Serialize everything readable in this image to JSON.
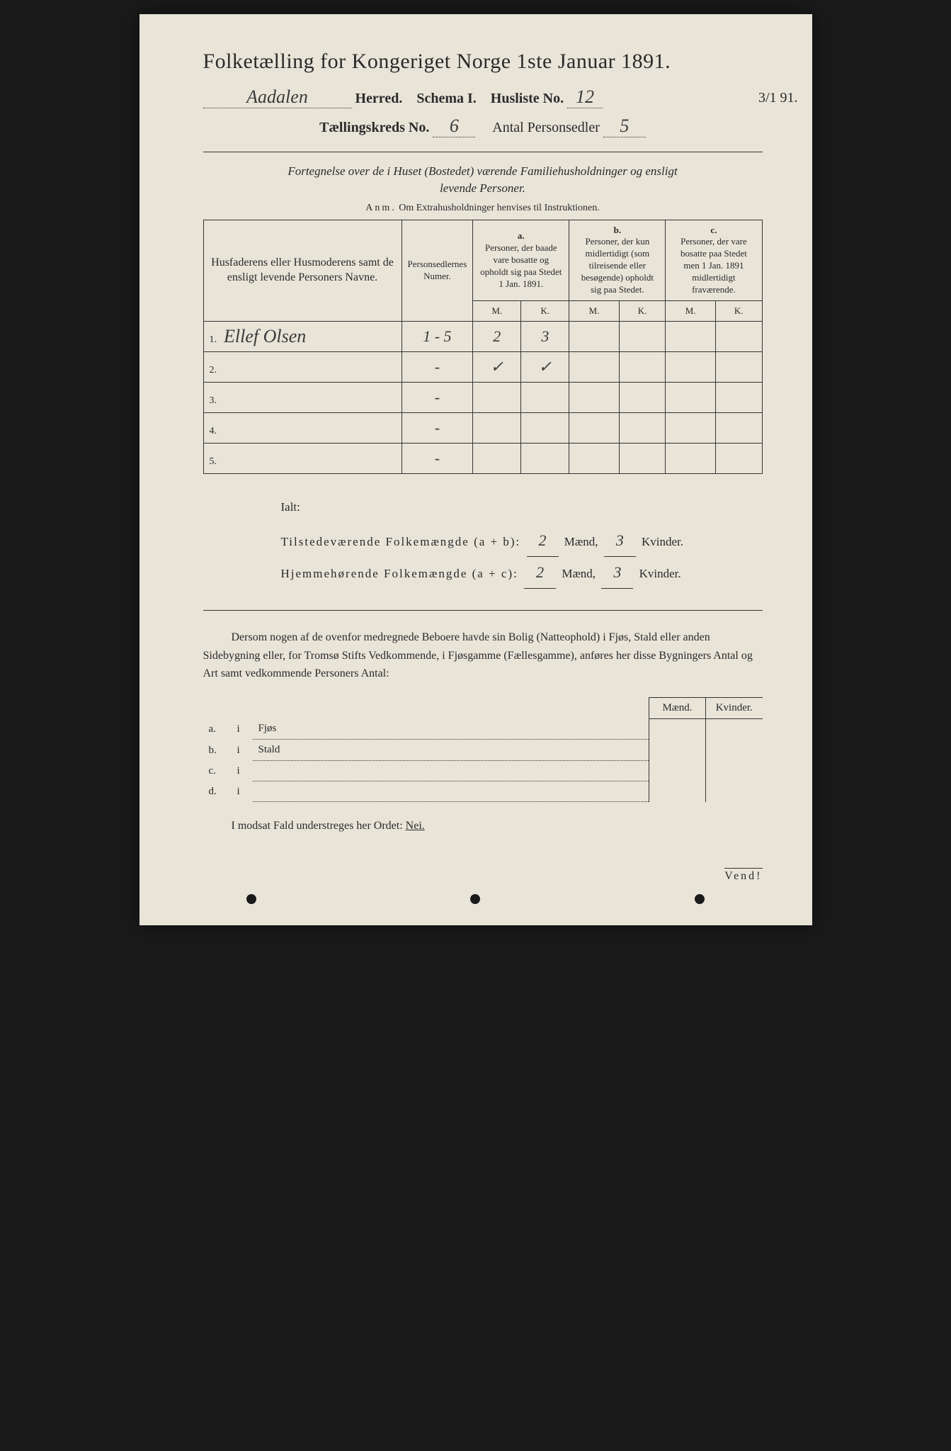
{
  "title": "Folketælling for Kongeriget Norge 1ste Januar 1891.",
  "header": {
    "herred_value": "Aadalen",
    "herred_label": "Herred.",
    "schema_label": "Schema I.",
    "husliste_label": "Husliste No.",
    "husliste_value": "12",
    "margin_date": "3/1 91.",
    "kreds_label": "Tællingskreds No.",
    "kreds_value": "6",
    "antal_label": "Antal Personsedler",
    "antal_value": "5"
  },
  "intro": {
    "line1": "Fortegnelse over de i Huset (Bostedet) værende Familiehusholdninger og ensligt",
    "line2": "levende Personer.",
    "anm_label": "Anm.",
    "anm_text": "Om Extrahusholdninger henvises til Instruktionen."
  },
  "table": {
    "headers": {
      "name": "Husfaderens eller Husmoderens samt de ensligt levende Personers Navne.",
      "num": "Personsedlernes Numer.",
      "a_label": "a.",
      "a_text": "Personer, der baade vare bosatte og opholdt sig paa Stedet 1 Jan. 1891.",
      "b_label": "b.",
      "b_text": "Personer, der kun midlertidigt (som tilreisende eller besøgende) opholdt sig paa Stedet.",
      "c_label": "c.",
      "c_text": "Personer, der vare bosatte paa Stedet men 1 Jan. 1891 midlertidigt fraværende.",
      "m": "M.",
      "k": "K."
    },
    "rows": [
      {
        "n": "1.",
        "name": "Ellef Olsen",
        "num": "1 - 5",
        "am": "2",
        "ak": "3",
        "bm": "",
        "bk": "",
        "cm": "",
        "ck": ""
      },
      {
        "n": "2.",
        "name": "",
        "num": "-",
        "am": "✓",
        "ak": "✓",
        "bm": "",
        "bk": "",
        "cm": "",
        "ck": ""
      },
      {
        "n": "3.",
        "name": "",
        "num": "-",
        "am": "",
        "ak": "",
        "bm": "",
        "bk": "",
        "cm": "",
        "ck": ""
      },
      {
        "n": "4.",
        "name": "",
        "num": "-",
        "am": "",
        "ak": "",
        "bm": "",
        "bk": "",
        "cm": "",
        "ck": ""
      },
      {
        "n": "5.",
        "name": "",
        "num": "-",
        "am": "",
        "ak": "",
        "bm": "",
        "bk": "",
        "cm": "",
        "ck": ""
      }
    ]
  },
  "totals": {
    "ialt": "Ialt:",
    "line1_label": "Tilstedeværende Folkemængde (a + b):",
    "line1_m": "2",
    "line1_k": "3",
    "line2_label": "Hjemmehørende Folkemængde (a + c):",
    "line2_m": "2",
    "line2_k": "3",
    "maend": "Mænd,",
    "kvinder": "Kvinder."
  },
  "para": "Dersom nogen af de ovenfor medregnede Beboere havde sin Bolig (Natteophold) i Fjøs, Stald eller anden Sidebygning eller, for Tromsø Stifts Vedkommende, i Fjøsgamme (Fællesgamme), anføres her disse Bygningers Antal og Art samt vedkommende Personers Antal:",
  "side": {
    "maend": "Mænd.",
    "kvinder": "Kvinder.",
    "rows": [
      {
        "l": "a.",
        "i": "i",
        "t": "Fjøs"
      },
      {
        "l": "b.",
        "i": "i",
        "t": "Stald"
      },
      {
        "l": "c.",
        "i": "i",
        "t": ""
      },
      {
        "l": "d.",
        "i": "i",
        "t": ""
      }
    ]
  },
  "nei": {
    "text": "I modsat Fald understreges her Ordet:",
    "word": "Nei."
  },
  "vend": "Vend!",
  "colors": {
    "paper": "#e8e4d8",
    "ink": "#2a2a2a",
    "bg": "#1a1a1a"
  }
}
